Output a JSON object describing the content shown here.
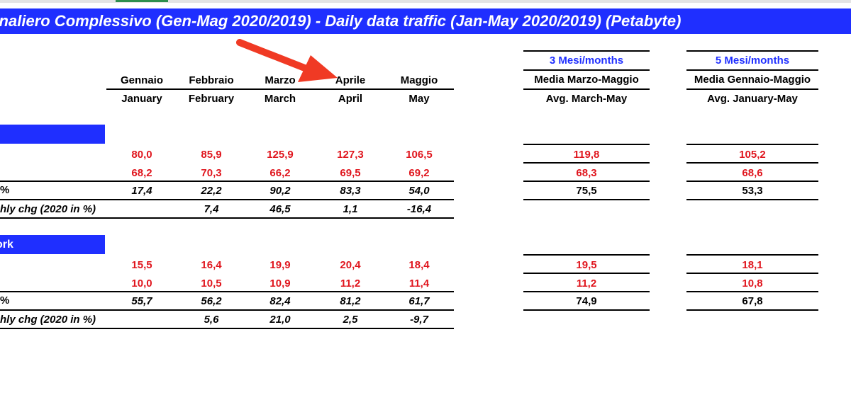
{
  "title": "rnaliero Complessivo (Gen-Mag 2020/2019) - Daily data traffic (Jan-May 2020/2019) (Petabyte)",
  "months": [
    {
      "it": "Gennaio",
      "en": "January"
    },
    {
      "it": "Febbraio",
      "en": "February"
    },
    {
      "it": "Marzo",
      "en": "March"
    },
    {
      "it": "Aprile",
      "en": "April"
    },
    {
      "it": "Maggio",
      "en": "May"
    }
  ],
  "avg3": {
    "top": "3 Mesi/months",
    "it": "Media Marzo-Maggio",
    "en": "Avg. March-May"
  },
  "avg5": {
    "top": "5 Mesi/months",
    "it": "Media Gennaio-Maggio",
    "en": "Avg. January-May"
  },
  "section1": {
    "band": "",
    "row1": {
      "values": [
        "80,0",
        "85,9",
        "125,9",
        "127,3",
        "106,5"
      ],
      "avg3": "119,8",
      "avg5": "105,2"
    },
    "row2": {
      "values": [
        "68,2",
        "70,3",
        "66,2",
        "69,5",
        "69,2"
      ],
      "avg3": "68,3",
      "avg5": "68,6"
    },
    "row3": {
      "label": "%",
      "values": [
        "17,4",
        "22,2",
        "90,2",
        "83,3",
        "54,0"
      ],
      "avg3": "75,5",
      "avg5": "53,3"
    },
    "row4": {
      "label": "hly chg  (2020 in %)",
      "values": [
        "",
        "7,4",
        "46,5",
        "1,1",
        "-16,4"
      ]
    }
  },
  "section2": {
    "band": "ork",
    "row1": {
      "values": [
        "15,5",
        "16,4",
        "19,9",
        "20,4",
        "18,4"
      ],
      "avg3": "19,5",
      "avg5": "18,1"
    },
    "row2": {
      "values": [
        "10,0",
        "10,5",
        "10,9",
        "11,2",
        "11,4"
      ],
      "avg3": "11,2",
      "avg5": "10,8"
    },
    "row3": {
      "label": "%",
      "values": [
        "55,7",
        "56,2",
        "82,4",
        "81,2",
        "61,7"
      ],
      "avg3": "74,9",
      "avg5": "67,8"
    },
    "row4": {
      "label": "hly chg  (2020 in %)",
      "values": [
        "",
        "5,6",
        "21,0",
        "2,5",
        "-9,7"
      ]
    }
  },
  "colors": {
    "title_bg": "#1f2fff",
    "value_red": "#e0161e",
    "arrow": "#f03a24"
  }
}
